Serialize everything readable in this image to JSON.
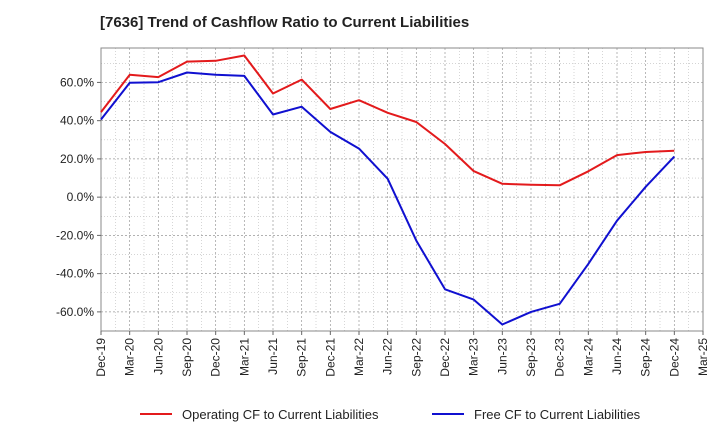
{
  "chart_data": {
    "type": "line",
    "title": "[7636]  Trend of Cashflow Ratio to Current Liabilities",
    "xlabel": "",
    "ylabel": "",
    "categories": [
      "Dec-19",
      "Mar-20",
      "Jun-20",
      "Sep-20",
      "Dec-20",
      "Mar-21",
      "Jun-21",
      "Sep-21",
      "Dec-21",
      "Mar-22",
      "Jun-22",
      "Sep-22",
      "Dec-22",
      "Mar-23",
      "Jun-23",
      "Sep-23",
      "Dec-23",
      "Mar-24",
      "Jun-24",
      "Sep-24",
      "Dec-24",
      "Mar-25"
    ],
    "x_ticks": [
      "Dec-19",
      "Mar-20",
      "Jun-20",
      "Sep-20",
      "Dec-20",
      "Mar-21",
      "Jun-21",
      "Sep-21",
      "Dec-21",
      "Mar-22",
      "Jun-22",
      "Sep-22",
      "Dec-22",
      "Mar-23",
      "Jun-23",
      "Sep-23",
      "Dec-23",
      "Mar-24",
      "Jun-24",
      "Sep-24",
      "Dec-24",
      "Mar-25"
    ],
    "y_ticks": [
      60,
      40,
      20,
      0,
      -20,
      -40,
      -60
    ],
    "y_tick_labels": [
      "60.0%",
      "40.0%",
      "20.0%",
      "0.0%",
      "-20.0%",
      "-40.0%",
      "-60.0%"
    ],
    "ylim": [
      -70,
      78
    ],
    "grid": true,
    "legend_position": "bottom",
    "series": [
      {
        "name": "Operating CF to Current Liabilities",
        "color": "#e31a1c",
        "values": [
          44.5,
          64.0,
          62.8,
          70.9,
          71.3,
          74.1,
          54.2,
          61.5,
          46.1,
          50.7,
          44.1,
          39.3,
          27.8,
          13.6,
          7.0,
          6.5,
          6.2,
          13.5,
          22.0,
          23.6,
          24.3,
          null
        ]
      },
      {
        "name": "Free CF to Current Liabilities",
        "color": "#1010d0",
        "values": [
          40.6,
          59.8,
          60.1,
          65.2,
          64.0,
          63.4,
          43.2,
          47.3,
          34.1,
          25.4,
          9.6,
          -22.7,
          -48.2,
          -53.6,
          -66.6,
          -60.0,
          -55.8,
          -34.9,
          -12.3,
          5.4,
          21.2,
          null
        ]
      }
    ]
  }
}
